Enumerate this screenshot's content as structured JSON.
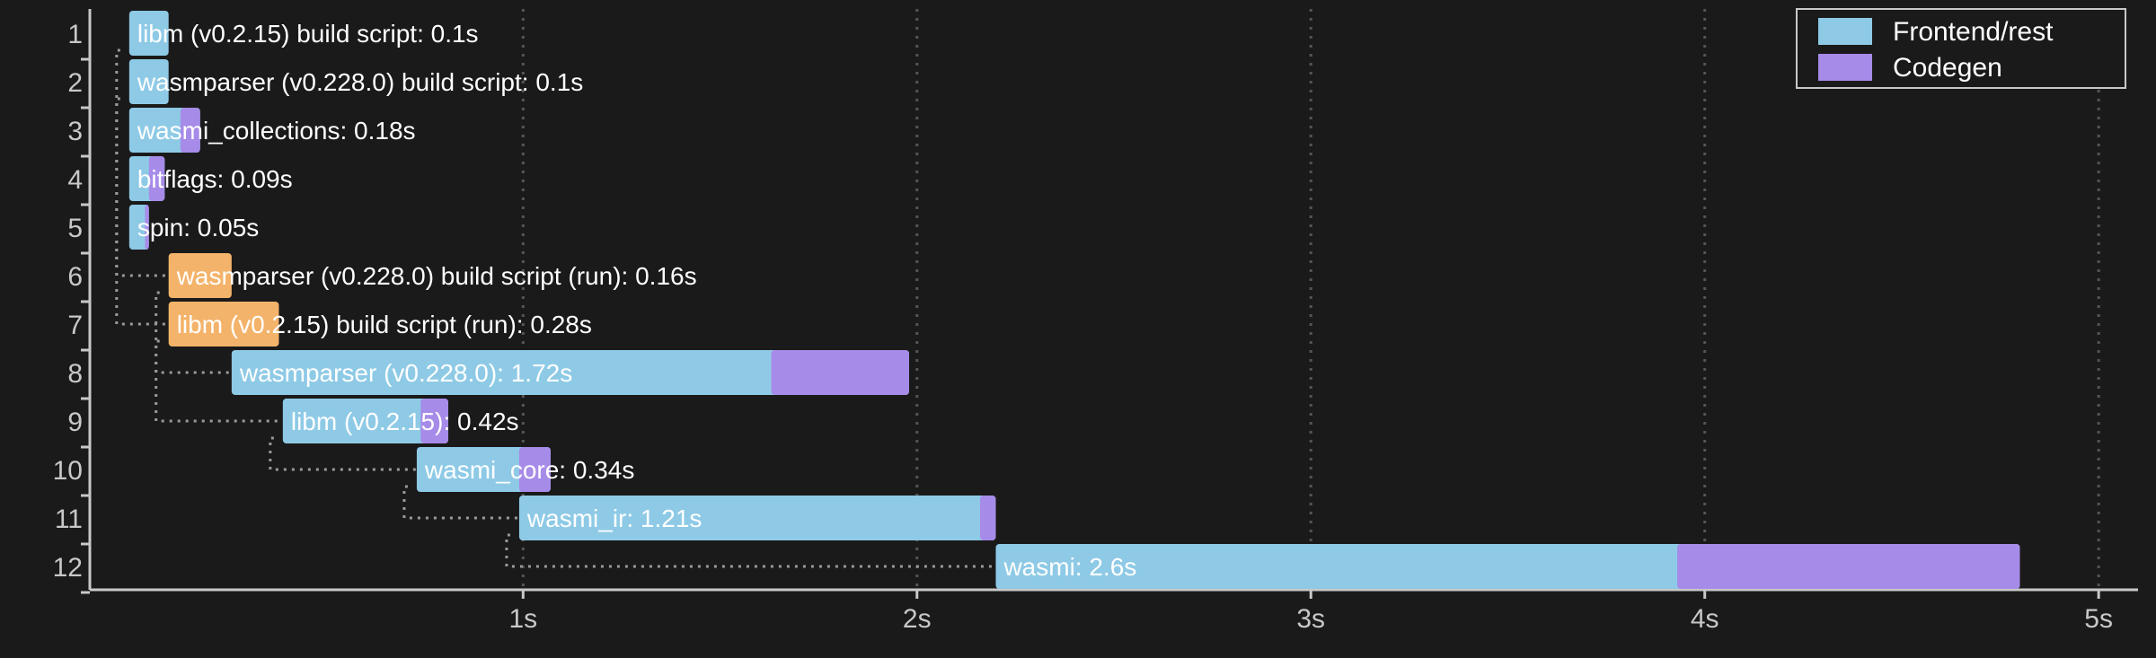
{
  "chart_data": {
    "type": "bar",
    "x_unit_suffix": "s",
    "xlim": [
      -0.1,
      5.1
    ],
    "x_ticks": [
      1,
      2,
      3,
      4,
      5
    ],
    "grid": true,
    "legend_position": "top-right",
    "legend": [
      {
        "name": "Frontend/rest",
        "color": "#8ecae6"
      },
      {
        "name": "Codegen",
        "color": "#a78be8"
      }
    ],
    "units": [
      {
        "row": 1,
        "label": "libm (v0.2.15) build script: 0.1s",
        "start": 0.0,
        "duration": 0.1,
        "codegen": 0.0,
        "kind": "build"
      },
      {
        "row": 2,
        "label": "wasmparser (v0.228.0) build script: 0.1s",
        "start": 0.0,
        "duration": 0.1,
        "codegen": 0.0,
        "kind": "build"
      },
      {
        "row": 3,
        "label": "wasmi_collections: 0.18s",
        "start": 0.0,
        "duration": 0.18,
        "codegen": 0.05,
        "kind": "build"
      },
      {
        "row": 4,
        "label": "bitflags: 0.09s",
        "start": 0.0,
        "duration": 0.09,
        "codegen": 0.04,
        "kind": "build"
      },
      {
        "row": 5,
        "label": "spin: 0.05s",
        "start": 0.0,
        "duration": 0.05,
        "codegen": 0.01,
        "kind": "build"
      },
      {
        "row": 6,
        "label": "wasmparser (v0.228.0) build script (run): 0.16s",
        "start": 0.1,
        "duration": 0.16,
        "codegen": 0.0,
        "kind": "run"
      },
      {
        "row": 7,
        "label": "libm (v0.2.15) build script (run): 0.28s",
        "start": 0.1,
        "duration": 0.28,
        "codegen": 0.0,
        "kind": "run"
      },
      {
        "row": 8,
        "label": "wasmparser (v0.228.0): 1.72s",
        "start": 0.26,
        "duration": 1.72,
        "codegen": 0.35,
        "kind": "build"
      },
      {
        "row": 9,
        "label": "libm (v0.2.15): 0.42s",
        "start": 0.39,
        "duration": 0.42,
        "codegen": 0.07,
        "kind": "build"
      },
      {
        "row": 10,
        "label": "wasmi_core: 0.34s",
        "start": 0.73,
        "duration": 0.34,
        "codegen": 0.08,
        "kind": "build"
      },
      {
        "row": 11,
        "label": "wasmi_ir: 1.21s",
        "start": 0.99,
        "duration": 1.21,
        "codegen": 0.04,
        "kind": "build"
      },
      {
        "row": 12,
        "label": "wasmi: 2.6s",
        "start": 2.2,
        "duration": 2.6,
        "codegen": 0.87,
        "kind": "build"
      }
    ],
    "dependencies": [
      {
        "from_row": 2,
        "to_row": 6
      },
      {
        "from_row": 1,
        "to_row": 7
      },
      {
        "from_row": 6,
        "to_row": 8
      },
      {
        "from_row": 7,
        "to_row": 9
      },
      {
        "from_row": 9,
        "to_row": 10
      },
      {
        "from_row": 10,
        "to_row": 11
      },
      {
        "from_row": 11,
        "to_row": 12
      }
    ],
    "colors": {
      "background": "#1a1a1a",
      "frontend": "#8ecae6",
      "codegen": "#a78be8",
      "build_script_run": "#f4b36a",
      "text": "#ffffff",
      "axis": "#c8c8c8",
      "grid": "#555555",
      "dep_line": "#9a9a9a"
    }
  }
}
